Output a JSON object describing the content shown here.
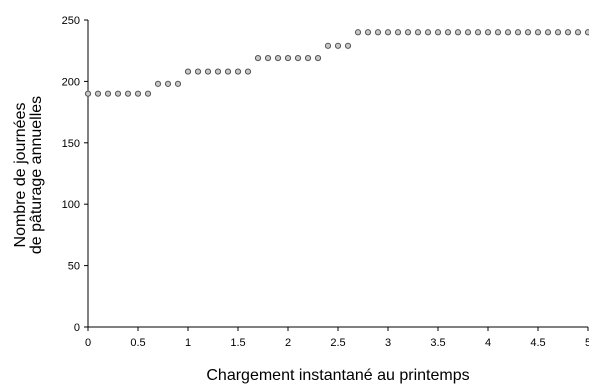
{
  "chart_data": {
    "type": "scatter",
    "title": "",
    "xlabel": "Chargement instantané au printemps",
    "ylabel_line1": "Nombre de journées",
    "ylabel_line2": "de pâturage annuelles",
    "xlim": [
      0,
      5
    ],
    "ylim": [
      0,
      250
    ],
    "xticks": [
      "0",
      "0.5",
      "1",
      "1.5",
      "2",
      "2.5",
      "3",
      "3.5",
      "4",
      "4.5",
      "5"
    ],
    "yticks": [
      "0",
      "50",
      "100",
      "150",
      "200",
      "250"
    ],
    "grid": false,
    "series": [
      {
        "marker_color": "#c8c8c8",
        "marker_edge": "#555555",
        "x": [
          0,
          0.1,
          0.2,
          0.3,
          0.4,
          0.5,
          0.6,
          0.7,
          0.8,
          0.9,
          1.0,
          1.1,
          1.2,
          1.3,
          1.4,
          1.5,
          1.6,
          1.7,
          1.8,
          1.9,
          2.0,
          2.1,
          2.2,
          2.3,
          2.4,
          2.5,
          2.6,
          2.7,
          2.8,
          2.9,
          3.0,
          3.1,
          3.2,
          3.3,
          3.4,
          3.5,
          3.6,
          3.7,
          3.8,
          3.9,
          4.0,
          4.1,
          4.2,
          4.3,
          4.4,
          4.5,
          4.6,
          4.7,
          4.8,
          4.9,
          5.0
        ],
        "y": [
          190,
          190,
          190,
          190,
          190,
          190,
          190,
          198,
          198,
          198,
          208,
          208,
          208,
          208,
          208,
          208,
          208,
          219,
          219,
          219,
          219,
          219,
          219,
          219,
          229,
          229,
          229,
          240,
          240,
          240,
          240,
          240,
          240,
          240,
          240,
          240,
          240,
          240,
          240,
          240,
          240,
          240,
          240,
          240,
          240,
          240,
          240,
          240,
          240,
          240,
          240
        ]
      }
    ]
  }
}
